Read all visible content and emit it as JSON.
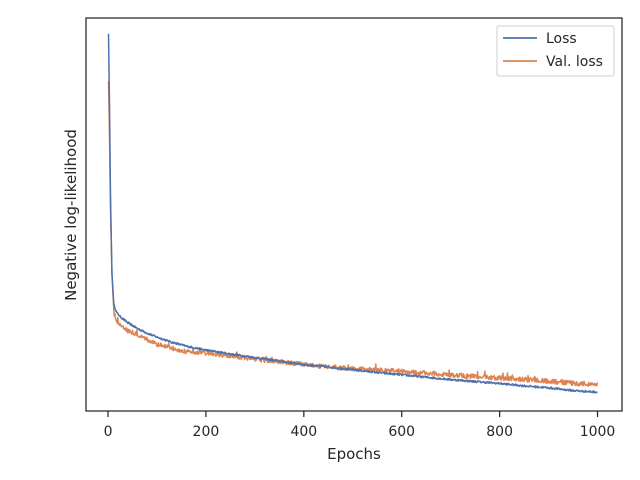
{
  "chart_data": {
    "type": "line",
    "xlabel": "Epochs",
    "ylabel": "Negative log-likelihood",
    "xlim": [
      -45,
      1050
    ],
    "ylim": [
      0,
      100
    ],
    "xticks": [
      0,
      200,
      400,
      600,
      800,
      1000
    ],
    "xtick_labels": [
      "0",
      "200",
      "400",
      "600",
      "800",
      "1000"
    ],
    "yticks_shown": false,
    "grid": false,
    "legend_position": "top-right",
    "series": [
      {
        "name": "Loss",
        "color": "#4c72b0",
        "points": [
          [
            1,
            96
          ],
          [
            3,
            78
          ],
          [
            5,
            55
          ],
          [
            8,
            35
          ],
          [
            12,
            27
          ],
          [
            18,
            25
          ],
          [
            25,
            24
          ],
          [
            40,
            22.5
          ],
          [
            60,
            21
          ],
          [
            80,
            19.8
          ],
          [
            100,
            18.8
          ],
          [
            130,
            17.5
          ],
          [
            160,
            16.5
          ],
          [
            200,
            15.5
          ],
          [
            250,
            14.5
          ],
          [
            300,
            13.6
          ],
          [
            350,
            12.7
          ],
          [
            400,
            11.8
          ],
          [
            450,
            11.2
          ],
          [
            500,
            10.5
          ],
          [
            550,
            9.8
          ],
          [
            600,
            9.2
          ],
          [
            650,
            8.6
          ],
          [
            700,
            8
          ],
          [
            750,
            7.5
          ],
          [
            800,
            7
          ],
          [
            850,
            6.4
          ],
          [
            900,
            5.9
          ],
          [
            950,
            5.2
          ],
          [
            1000,
            4.8
          ]
        ],
        "noise": 0.25
      },
      {
        "name": "Val. loss",
        "color": "#dd8452",
        "points": [
          [
            1,
            84
          ],
          [
            3,
            70
          ],
          [
            5,
            52
          ],
          [
            8,
            35
          ],
          [
            12,
            25
          ],
          [
            18,
            23
          ],
          [
            25,
            22
          ],
          [
            40,
            20.5
          ],
          [
            60,
            19.5
          ],
          [
            80,
            18.2
          ],
          [
            100,
            17
          ],
          [
            130,
            16
          ],
          [
            160,
            15.2
          ],
          [
            200,
            14.8
          ],
          [
            250,
            14
          ],
          [
            300,
            13.2
          ],
          [
            350,
            12.6
          ],
          [
            400,
            11.8
          ],
          [
            450,
            11.2
          ],
          [
            500,
            10.8
          ],
          [
            550,
            10.4
          ],
          [
            600,
            10.1
          ],
          [
            650,
            9.6
          ],
          [
            700,
            9.2
          ],
          [
            750,
            8.8
          ],
          [
            800,
            8.4
          ],
          [
            850,
            8
          ],
          [
            900,
            7.6
          ],
          [
            950,
            7.1
          ],
          [
            1000,
            6.7
          ]
        ],
        "noise": 0.6
      }
    ]
  }
}
